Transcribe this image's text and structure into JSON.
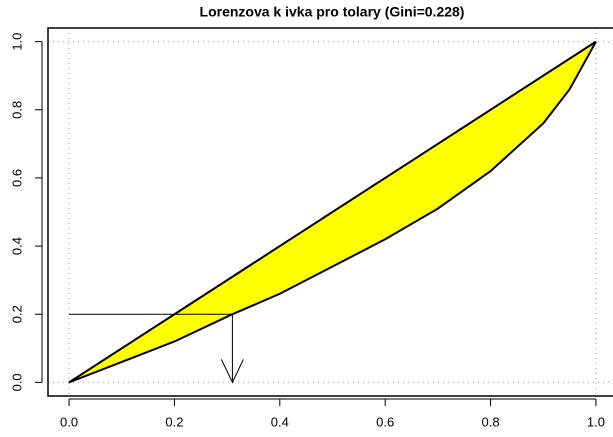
{
  "chart_data": {
    "type": "line",
    "title": "Lorenzova k ivka pro tolary (Gini=0.228)",
    "lines": [
      {
        "x": [
          0,
          1
        ],
        "values": [
          0,
          1
        ]
      },
      {
        "x": [
          0,
          0.1,
          0.2,
          0.31,
          0.4,
          0.5,
          0.6,
          0.7,
          0.8,
          0.9,
          0.95,
          1
        ],
        "values": [
          0,
          0.06,
          0.12,
          0.2,
          0.26,
          0.34,
          0.42,
          0.51,
          0.62,
          0.76,
          0.86,
          1
        ]
      }
    ],
    "fill_color": "#ffff00",
    "marker": {
      "x": 0.31,
      "y": 0.2
    },
    "guides": [
      0,
      1
    ],
    "xlim": [
      -0.04,
      1.04
    ],
    "ylim": [
      -0.04,
      1.04
    ],
    "xticks": [
      {
        "value": 0,
        "label": "0.0"
      },
      0.2,
      0.4,
      0.6,
      0.8,
      {
        "value": 1,
        "label": "1.0"
      }
    ],
    "yticks": [
      {
        "value": 0,
        "label": "0.0"
      },
      0.2,
      0.4,
      0.6,
      0.8,
      {
        "value": 1,
        "label": "1.0"
      }
    ]
  }
}
